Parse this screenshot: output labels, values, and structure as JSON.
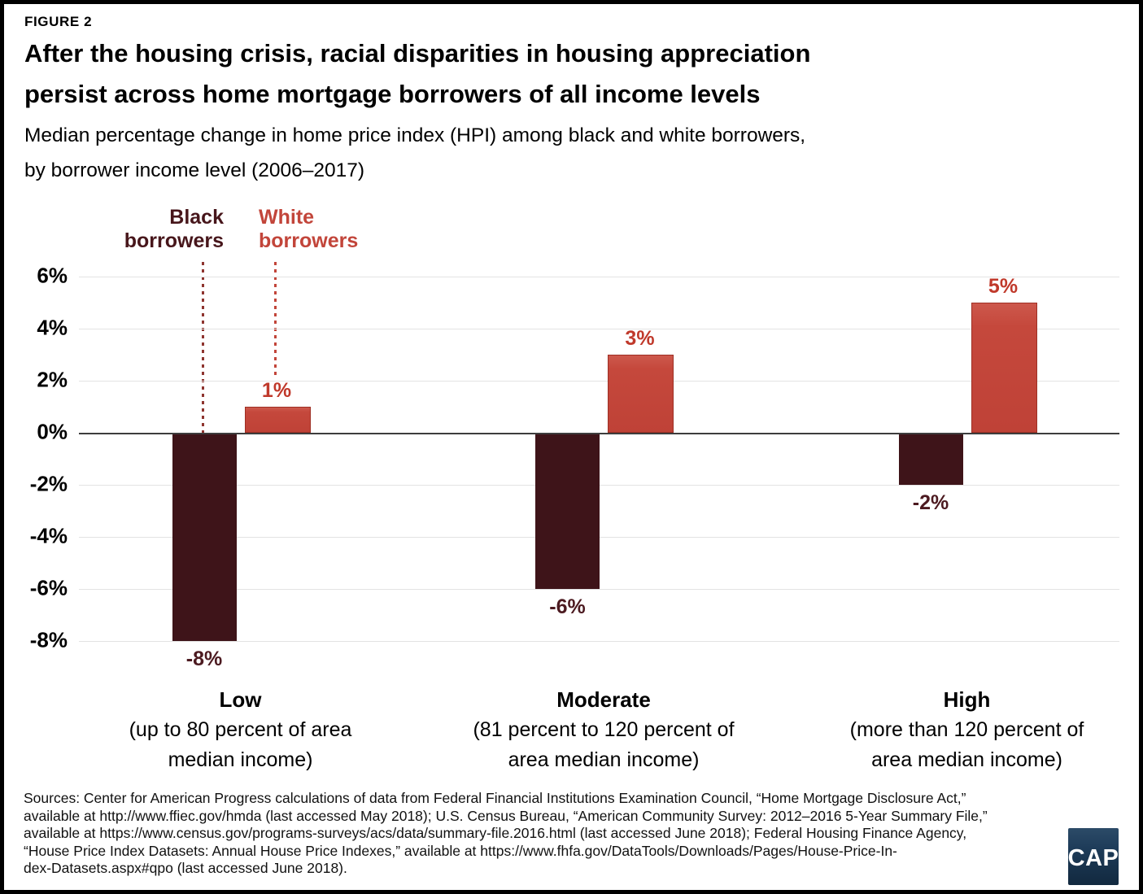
{
  "figure_label": "FIGURE 2",
  "title_lines": [
    "After the housing crisis, racial disparities in housing appreciation",
    "persist across home mortgage borrowers of all income levels"
  ],
  "subtitle_lines": [
    "Median percentage change in home price index (HPI) among black and white borrowers,",
    "by borrower income level (2006–2017)"
  ],
  "legend": {
    "black_label": "Black\nborrowers",
    "white_label": "White\nborrowers"
  },
  "colors": {
    "black_series_bar": "#3E1419",
    "black_series_text": "#47161B",
    "white_series_bar": "#C5483C",
    "white_series_border": "#9E2F24",
    "white_series_text": "#C0392B",
    "gridline": "#E3E3E3",
    "zero_line": "#3D3D3D",
    "logo_navy": "#1E3C59"
  },
  "chart_data": {
    "type": "bar",
    "title": "After the housing crisis, racial disparities in housing appreciation persist across home mortgage borrowers of all income levels",
    "subtitle": "Median percentage change in home price index (HPI) among black and white borrowers, by borrower income level (2006–2017)",
    "ylabel": "",
    "xlabel": "",
    "ylim": [
      -8,
      6
    ],
    "grid": true,
    "legend_position": "top-left, labels with dotted pointer lines",
    "yticks": [
      {
        "label": "6%",
        "value": 6
      },
      {
        "label": "4%",
        "value": 4
      },
      {
        "label": "2%",
        "value": 2
      },
      {
        "label": "0%",
        "value": 0
      },
      {
        "label": "-2%",
        "value": -2
      },
      {
        "label": "-4%",
        "value": -4
      },
      {
        "label": "-6%",
        "value": -6
      },
      {
        "label": "-8%",
        "value": -8
      }
    ],
    "categories": [
      {
        "name": "Low",
        "desc": "(up to 80 percent of area\nmedian income)"
      },
      {
        "name": "Moderate",
        "desc": "(81 percent to 120 percent of\narea median income)"
      },
      {
        "name": "High",
        "desc": "(more than 120 percent of\narea median income)"
      }
    ],
    "series": [
      {
        "name": "Black borrowers",
        "values": [
          -8,
          -6,
          -2
        ],
        "labels": [
          "-8%",
          "-6%",
          "-2%"
        ]
      },
      {
        "name": "White borrowers",
        "values": [
          1,
          3,
          5
        ],
        "labels": [
          "1%",
          "3%",
          "5%"
        ]
      }
    ]
  },
  "source_lines": [
    "Sources: Center for American Progress calculations of data from Federal Financial Institutions Examination Council, “Home Mortgage Disclosure Act,”",
    "available at http://www.ffiec.gov/hmda (last accessed May 2018); U.S. Census Bureau, “American Community Survey: 2012–2016 5-Year Summary File,”",
    "available at https://www.census.gov/programs-surveys/acs/data/summary-file.2016.html (last accessed June 2018); Federal Housing Finance Agency,",
    "“House Price Index Datasets: Annual House Price Indexes,” available at https://www.fhfa.gov/DataTools/Downloads/Pages/House-Price-In-",
    "dex-Datasets.aspx#qpo (last accessed June 2018)."
  ],
  "logo_text": "CAP"
}
